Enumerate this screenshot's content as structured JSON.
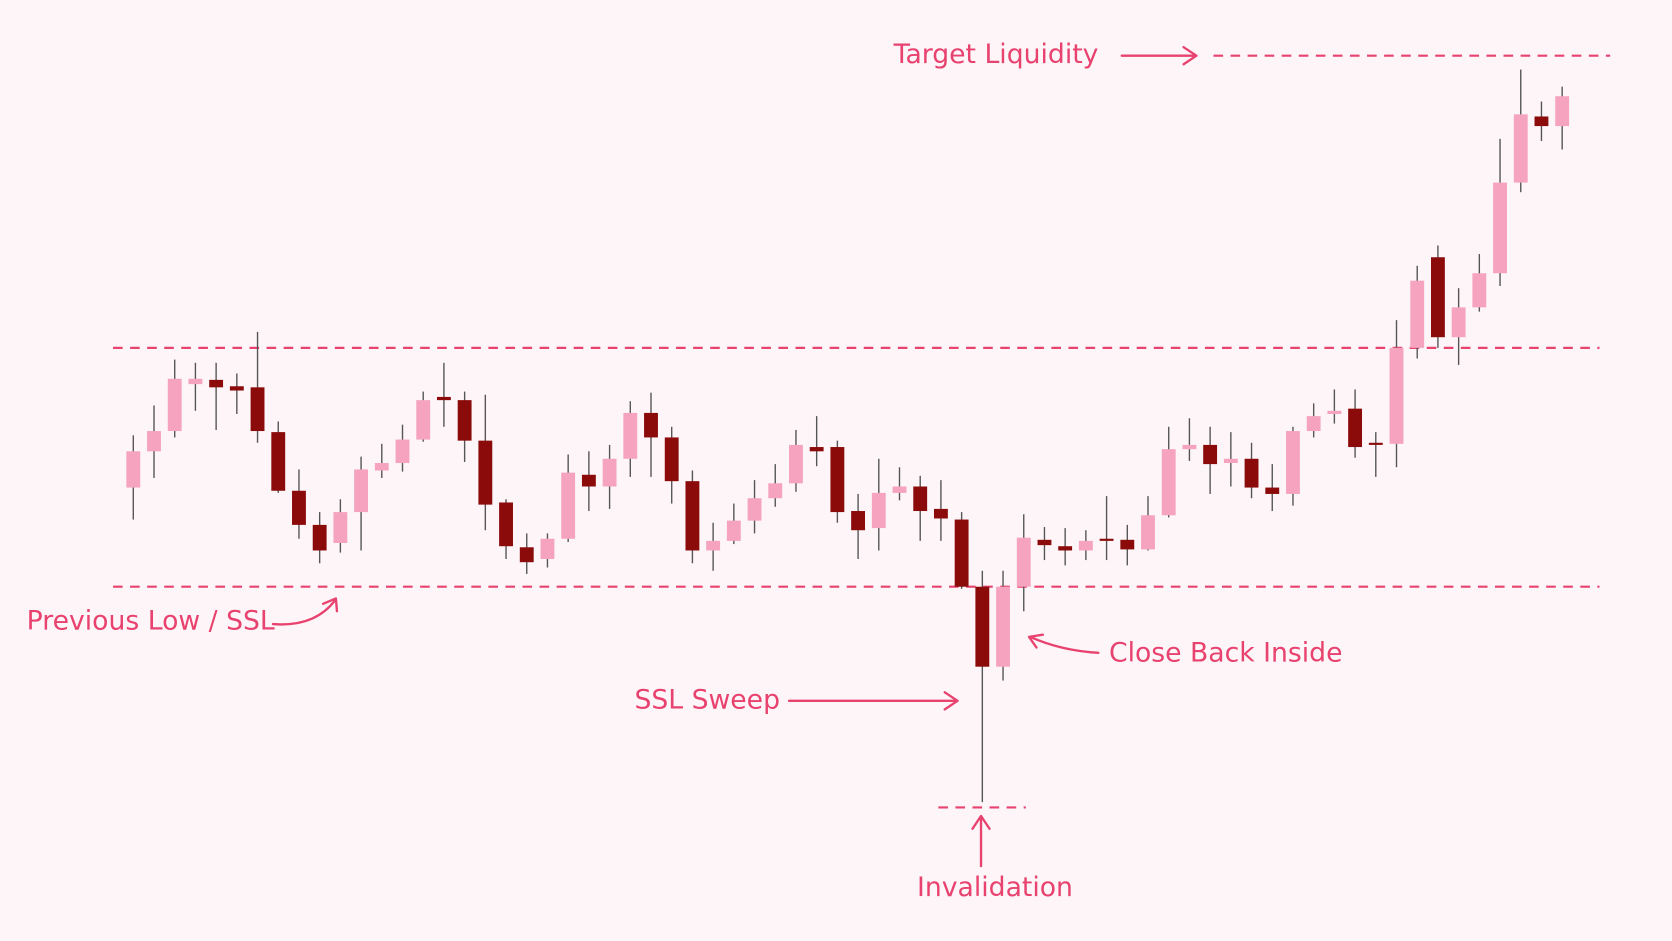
{
  "chart_data": {
    "type": "candlestick",
    "open": [
      425,
      459,
      478,
      522,
      526,
      520,
      519,
      477,
      422,
      390,
      373,
      402,
      441,
      448,
      470,
      510,
      507,
      469,
      411,
      369,
      358,
      377,
      437,
      426,
      452,
      495,
      472,
      431,
      366,
      375,
      394,
      415,
      429,
      463,
      463,
      403,
      387,
      420,
      426,
      405,
      395,
      332,
      257,
      332,
      376,
      370,
      366,
      377,
      376,
      367,
      399,
      461,
      465,
      448,
      452,
      425,
      419,
      478,
      494,
      499,
      467,
      466,
      556,
      641,
      566,
      594,
      626,
      711,
      773,
      764
    ],
    "high": [
      474,
      502,
      545,
      542,
      542,
      532,
      571,
      487,
      442,
      402,
      414,
      454,
      466,
      484,
      515,
      542,
      515,
      512,
      414,
      382,
      382,
      456,
      459,
      465,
      506,
      514,
      482,
      441,
      392,
      410,
      432,
      447,
      479,
      492,
      469,
      419,
      452,
      444,
      436,
      432,
      402,
      347,
      347,
      400,
      388,
      387,
      385,
      417,
      390,
      417,
      482,
      490,
      482,
      477,
      467,
      447,
      482,
      504,
      517,
      517,
      477,
      582,
      633,
      652,
      612,
      644,
      752,
      817,
      787,
      801
    ],
    "low": [
      395,
      434,
      472,
      497,
      479,
      494,
      467,
      420,
      377,
      354,
      364,
      366,
      434,
      440,
      468,
      482,
      449,
      385,
      358,
      344,
      350,
      374,
      403,
      405,
      435,
      435,
      410,
      354,
      347,
      372,
      382,
      407,
      421,
      445,
      392,
      358,
      366,
      413,
      375,
      375,
      330,
      130,
      244,
      309,
      357,
      352,
      357,
      357,
      352,
      366,
      397,
      450,
      419,
      426,
      415,
      403,
      408,
      472,
      485,
      453,
      435,
      444,
      546,
      556,
      540,
      590,
      614,
      702,
      750,
      742
    ],
    "close": [
      459,
      478,
      527,
      527,
      519,
      516,
      478,
      422,
      390,
      366,
      402,
      442,
      448,
      470,
      507,
      507,
      469,
      409,
      370,
      355,
      377,
      439,
      426,
      452,
      495,
      472,
      431,
      366,
      375,
      394,
      415,
      429,
      465,
      459,
      402,
      385,
      420,
      426,
      403,
      396,
      332,
      257,
      332,
      378,
      371,
      366,
      375,
      375,
      367,
      399,
      461,
      465,
      447,
      452,
      425,
      419,
      478,
      492,
      497,
      463,
      465,
      556,
      619,
      566,
      594,
      626,
      711,
      775,
      764,
      792
    ],
    "up_color": "#f5a3bf",
    "down_color": "#8b0b0b",
    "ylim": [
      0,
      882
    ],
    "levels": [
      556,
      332,
      830,
      125
    ],
    "level_color": "#e8426f",
    "annotations": [
      "Target Liquidity",
      "Previous Low / SSL",
      "Close Back Inside",
      "SSL Sweep",
      "Invalidation"
    ]
  }
}
